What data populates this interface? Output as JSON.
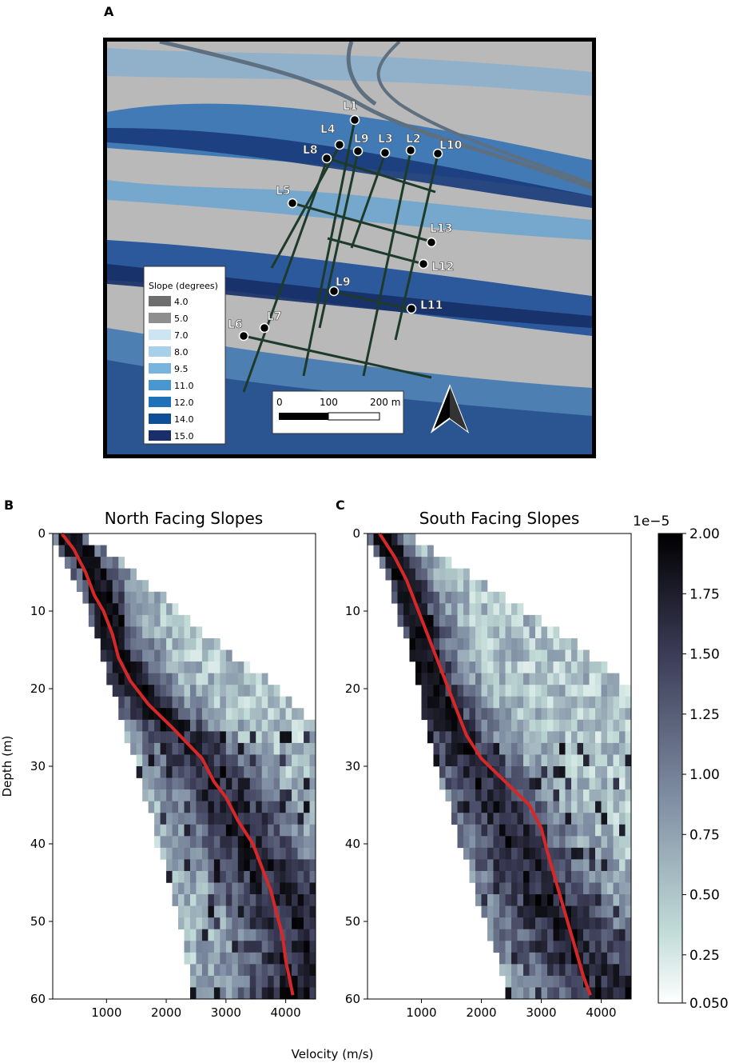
{
  "panels": {
    "a": {
      "letter": "A"
    },
    "b": {
      "letter": "B"
    },
    "c": {
      "letter": "C"
    }
  },
  "map": {
    "legend_title": "Slope (degrees)",
    "legend": [
      {
        "label": "4.0",
        "color": "#6e6e6e"
      },
      {
        "label": "5.0",
        "color": "#8e8e8e"
      },
      {
        "label": "7.0",
        "color": "#cde4f2"
      },
      {
        "label": "8.0",
        "color": "#a9d0ea"
      },
      {
        "label": "9.5",
        "color": "#79b4de"
      },
      {
        "label": "11.0",
        "color": "#4a97d0"
      },
      {
        "label": "12.0",
        "color": "#1f72b8"
      },
      {
        "label": "14.0",
        "color": "#0f4f98"
      },
      {
        "label": "15.0",
        "color": "#1a2f6a"
      }
    ],
    "line_labels": [
      "L1",
      "L4",
      "L9",
      "L3",
      "L2",
      "L10",
      "L8",
      "L5",
      "L13",
      "L12",
      "L9",
      "L11",
      "L6",
      "L7"
    ],
    "scale_ticks": [
      "0",
      "100",
      "200 m"
    ],
    "north_arrow": "north-arrow-icon"
  },
  "chart_data": [
    {
      "type": "heatmap",
      "title": "North Facing Slopes",
      "xlabel": "Velocity (m/s)",
      "ylabel": "Depth (m)",
      "xlim": [
        100,
        4500
      ],
      "ylim": [
        60,
        0
      ],
      "xticks": [
        1000,
        2000,
        3000,
        4000
      ],
      "yticks": [
        0,
        10,
        20,
        30,
        40,
        50,
        60
      ],
      "density_envelope": {
        "depth": [
          0,
          5,
          10,
          15,
          20,
          25,
          30,
          35,
          40,
          45,
          50,
          55,
          60
        ],
        "v_min": [
          100,
          400,
          700,
          900,
          1100,
          1300,
          1500,
          1700,
          1850,
          2050,
          2200,
          2350,
          2450
        ],
        "v_max": [
          600,
          1500,
          2200,
          3000,
          3900,
          4500,
          4500,
          4500,
          4500,
          4500,
          4500,
          4500,
          4500
        ],
        "v_peak": [
          350,
          800,
          1000,
          1150,
          1500,
          2100,
          2700,
          3100,
          3350,
          3800,
          4200,
          4250,
          4250
        ]
      },
      "series": [
        {
          "depth": [
            0,
            2,
            5,
            8,
            10,
            13,
            16,
            19,
            22,
            25,
            29,
            32,
            34,
            37,
            40,
            43,
            46,
            49,
            52,
            55,
            58,
            59.5
          ],
          "velocity": [
            250,
            450,
            650,
            800,
            950,
            1100,
            1200,
            1400,
            1700,
            2100,
            2600,
            2800,
            3000,
            3200,
            3450,
            3600,
            3750,
            3850,
            3950,
            4000,
            4080,
            4120
          ],
          "color": "#d62828"
        }
      ]
    },
    {
      "type": "heatmap",
      "title": "South Facing Slopes",
      "xlabel": "Velocity (m/s)",
      "ylabel": "",
      "xlim": [
        100,
        4500
      ],
      "ylim": [
        60,
        0
      ],
      "xticks": [
        1000,
        2000,
        3000,
        4000
      ],
      "yticks": [
        0,
        10,
        20,
        30,
        40,
        50,
        60
      ],
      "density_envelope": {
        "depth": [
          0,
          5,
          10,
          15,
          20,
          25,
          30,
          35,
          40,
          45,
          50,
          55,
          60
        ],
        "v_min": [
          100,
          400,
          600,
          800,
          950,
          1100,
          1250,
          1450,
          1650,
          1850,
          2050,
          2300,
          2450
        ],
        "v_max": [
          700,
          1800,
          2700,
          3700,
          4500,
          4500,
          4500,
          4500,
          4500,
          4500,
          4500,
          4500,
          4500
        ],
        "v_peak": [
          350,
          700,
          900,
          1050,
          1200,
          1450,
          1900,
          2300,
          2600,
          2900,
          3300,
          3650,
          4300
        ]
      },
      "series": [
        {
          "depth": [
            0,
            3,
            6,
            10,
            14,
            18,
            22,
            26,
            29,
            32,
            35,
            38,
            41,
            45,
            49,
            53,
            57,
            59.5
          ],
          "velocity": [
            300,
            550,
            750,
            950,
            1150,
            1350,
            1550,
            1750,
            2000,
            2400,
            2800,
            3000,
            3100,
            3250,
            3400,
            3550,
            3700,
            3820
          ],
          "color": "#d62828"
        }
      ]
    }
  ],
  "colorbar": {
    "exponent_label": "1e−5",
    "ticks": [
      "2.00",
      "1.75",
      "1.50",
      "1.25",
      "1.00",
      "0.75",
      "0.50",
      "0.25",
      "0.050"
    ],
    "tick_values": [
      2.0,
      1.75,
      1.5,
      1.25,
      1.0,
      0.75,
      0.5,
      0.25,
      0.05
    ],
    "range": [
      0.05,
      2.0
    ],
    "colors": [
      "#ffffff",
      "#c2dcd8",
      "#7c8aa0",
      "#3a3a55",
      "#000000"
    ]
  }
}
